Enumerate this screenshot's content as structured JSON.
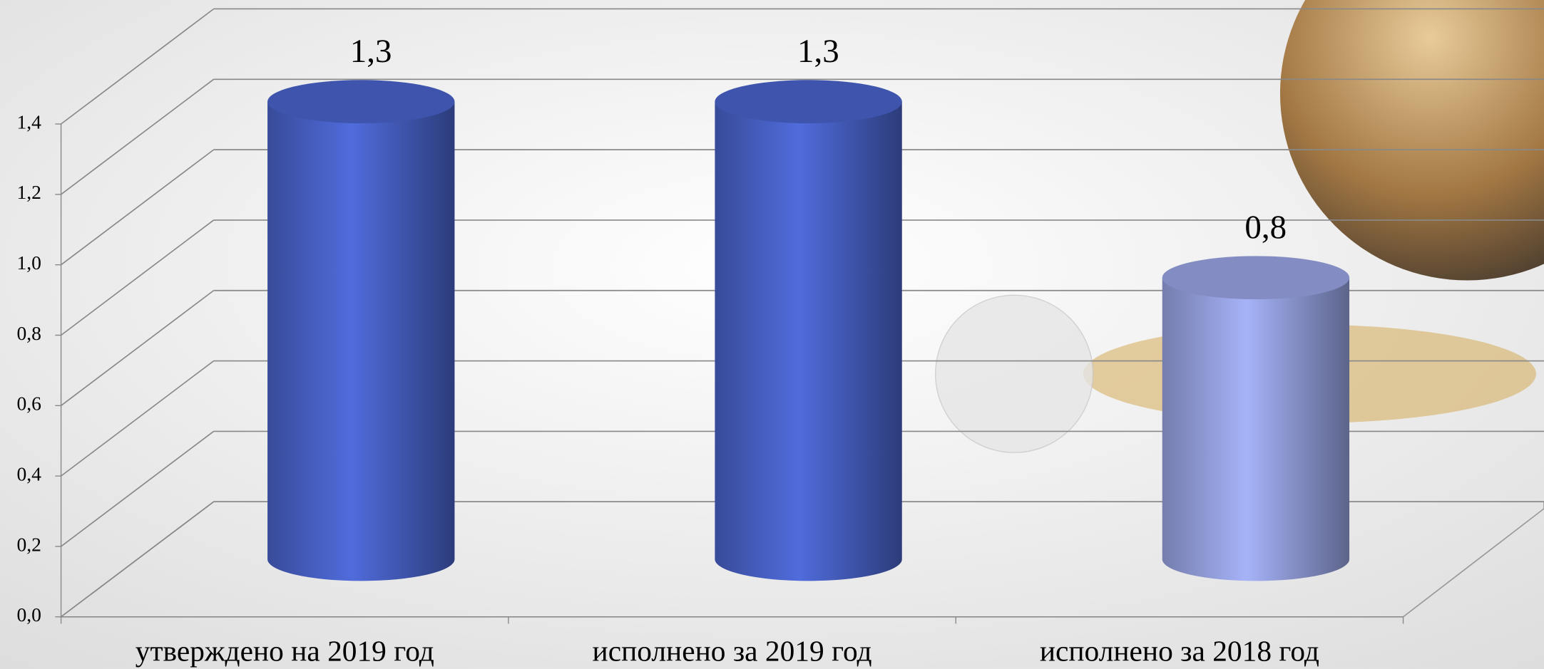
{
  "chart_data": {
    "type": "bar3d",
    "categories": [
      "утверждено на 2019 год",
      "исполнено за 2019 год",
      "исполнено за 2018 год"
    ],
    "values": [
      1.3,
      1.3,
      0.8
    ],
    "value_labels": [
      "1,3",
      "1,3",
      "0,8"
    ],
    "colors": [
      "#4a64cc",
      "#4a64cc",
      "#9aa6e6"
    ],
    "ylim": [
      0,
      1.4
    ],
    "yticks": [
      {
        "value": 0,
        "label": "0,0"
      },
      {
        "value": 0.2,
        "label": "0,2"
      },
      {
        "value": 0.4,
        "label": "0,4"
      },
      {
        "value": 0.6,
        "label": "0,6"
      },
      {
        "value": 0.8,
        "label": "0,8"
      },
      {
        "value": 1.0,
        "label": "1,0"
      },
      {
        "value": 1.2,
        "label": "1,2"
      },
      {
        "value": 1.4,
        "label": "1,4"
      }
    ],
    "grid": true
  }
}
